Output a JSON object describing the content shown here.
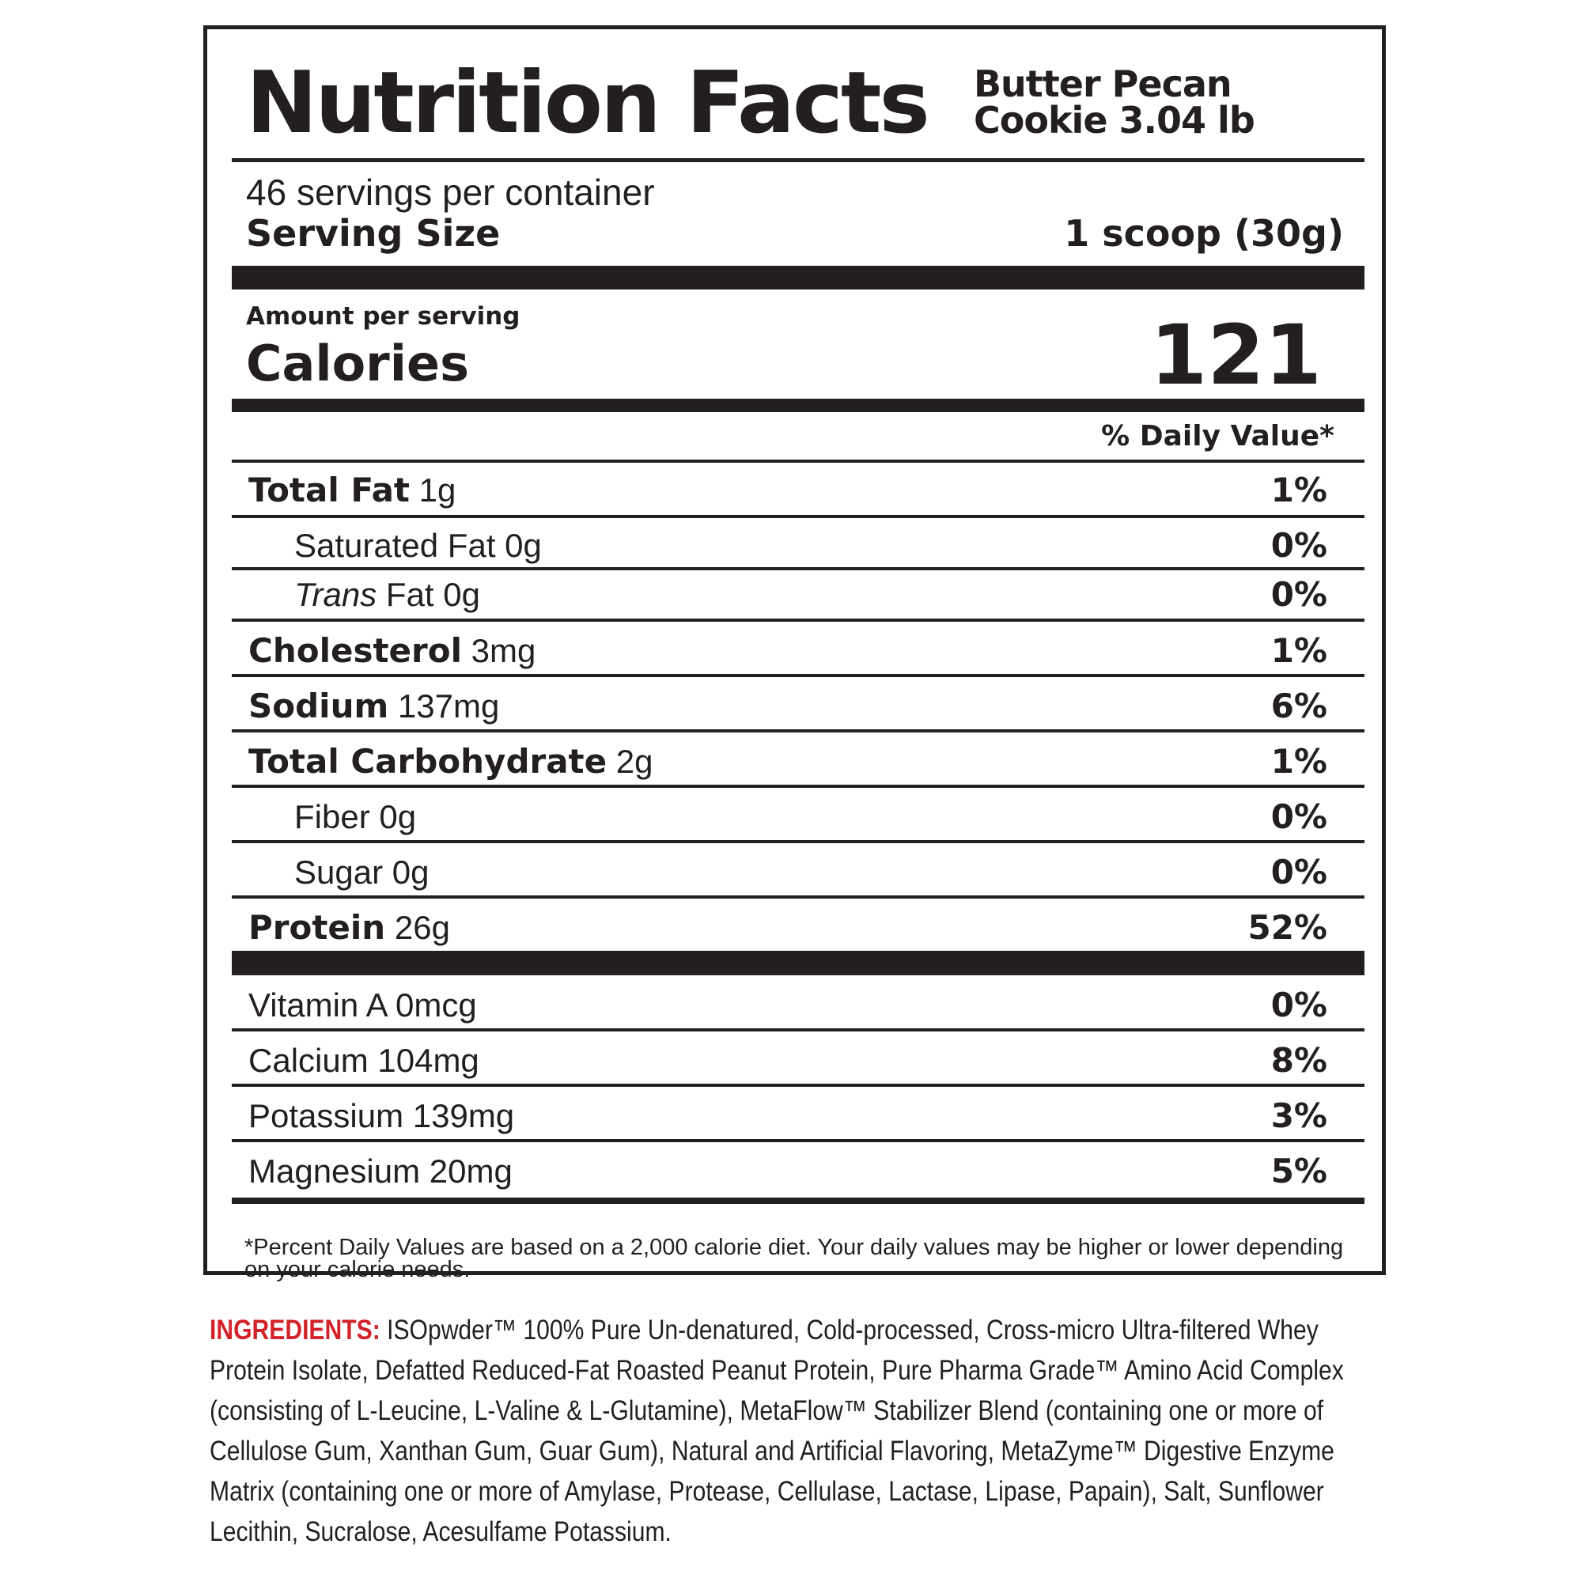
{
  "header": {
    "title": "Nutrition Facts",
    "flavor_line1": "Butter Pecan",
    "flavor_line2": "Cookie 3.04 lb"
  },
  "serving": {
    "per_container": "46 servings per container",
    "size_label": "Serving Size",
    "size_value": "1 scoop (30g)"
  },
  "calories": {
    "amount_label": "Amount per serving",
    "label": "Calories",
    "value": "121"
  },
  "daily_value_header": "% Daily Value*",
  "nutrients": [
    {
      "bold": "Total Fat",
      "plain": " 1g",
      "pct": "1%"
    },
    {
      "plain": "Saturated Fat 0g",
      "pct": "0%"
    },
    {
      "italic": "Trans",
      "plain": " Fat 0g",
      "pct": "0%"
    },
    {
      "bold": "Cholesterol",
      "plain": " 3mg",
      "pct": "1%"
    },
    {
      "bold": "Sodium",
      "plain": " 137mg",
      "pct": "6%"
    },
    {
      "bold": "Total Carbohydrate",
      "plain": " 2g",
      "pct": "1%"
    },
    {
      "plain": "Fiber 0g",
      "pct": "0%"
    },
    {
      "plain": "Sugar 0g",
      "pct": "0%"
    },
    {
      "bold": "Protein",
      "plain": " 26g",
      "pct": "52%"
    }
  ],
  "vitamins": [
    {
      "plain": "Vitamin A 0mcg",
      "pct": "0%"
    },
    {
      "plain": "Calcium 104mg",
      "pct": "8%"
    },
    {
      "plain": "Potassium 139mg",
      "pct": "3%"
    },
    {
      "plain": "Magnesium 20mg",
      "pct": "5%"
    }
  ],
  "footnote": "*Percent Daily Values are based on a 2,000 calorie diet. Your daily values may be higher or lower depending on your calorie needs.",
  "ingredients": {
    "label": "INGREDIENTS:",
    "text": " ISOpwder™ 100% Pure Un-denatured, Cold-processed, Cross-micro Ultra-filtered Whey Protein Isolate, Defatted Reduced-Fat Roasted Peanut Protein, Pure Pharma Grade™ Amino Acid Complex (consisting of L-Leucine, L-Valine & L-Glutamine), MetaFlow™ Stabilizer Blend (containing one or more of Cellulose Gum, Xanthan Gum, Guar Gum), Natural and Artificial Flavoring, MetaZyme™ Digestive Enzyme Matrix (containing one or more of Amylase, Protease, Cellulase, Lactase, Lipase, Papain), Salt, Sunflower Lecithin, Sucralose, Acesulfame Potassium.",
    "label_color": "#d2232a"
  }
}
